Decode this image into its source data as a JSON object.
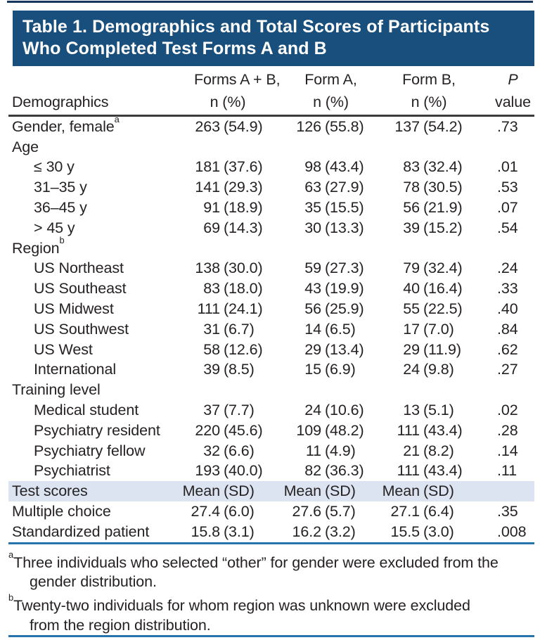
{
  "colors": {
    "top_bar": "#16375c",
    "title_background": "#194f7c",
    "title_text": "#ffffff",
    "highlight_row_background": "#dce4f2",
    "rule_blue": "#2773ab",
    "rule_dark": "#3b3b3b",
    "body_text": "#262223"
  },
  "title": {
    "line1": "Table 1. Demographics and Total Scores of Participants",
    "line2": "Who Completed Test Forms A and B"
  },
  "header": {
    "label": "Demographics",
    "groups": [
      {
        "line1": "Forms A + B,",
        "line2": "n (%)"
      },
      {
        "line1": "Form A,",
        "line2": "n (%)"
      },
      {
        "line1": "Form B,",
        "line2": "n (%)"
      }
    ],
    "p": {
      "line1": "P",
      "line2": "value"
    }
  },
  "rows": [
    {
      "label": "Gender, female",
      "sup": "a",
      "indent": 0,
      "values": [
        "263 (54.9)",
        "126 (55.8)",
        "137 (54.2)"
      ],
      "p": ".73"
    },
    {
      "label": "Age",
      "indent": 0,
      "values": null,
      "p": ""
    },
    {
      "label": "≤ 30 y",
      "indent": 1,
      "values": [
        "181 (37.6)",
        "98 (43.4)",
        "83 (32.4)"
      ],
      "p": ".01"
    },
    {
      "label": "31–35 y",
      "indent": 1,
      "values": [
        "141 (29.3)",
        "63 (27.9)",
        "78 (30.5)"
      ],
      "p": ".53"
    },
    {
      "label": "36–45 y",
      "indent": 1,
      "values": [
        "91 (18.9)",
        "35 (15.5)",
        "56 (21.9)"
      ],
      "p": ".07"
    },
    {
      "label": "> 45 y",
      "indent": 1,
      "values": [
        "69 (14.3)",
        "30 (13.3)",
        "39 (15.2)"
      ],
      "p": ".54"
    },
    {
      "label": "Region",
      "sup": "b",
      "indent": 0,
      "values": null,
      "p": ""
    },
    {
      "label": "US Northeast",
      "indent": 1,
      "values": [
        "138 (30.0)",
        "59 (27.3)",
        "79 (32.4)"
      ],
      "p": ".24"
    },
    {
      "label": "US Southeast",
      "indent": 1,
      "values": [
        "83 (18.0)",
        "43 (19.9)",
        "40 (16.4)"
      ],
      "p": ".33"
    },
    {
      "label": "US Midwest",
      "indent": 1,
      "values": [
        "111 (24.1)",
        "56 (25.9)",
        "55 (22.5)"
      ],
      "p": ".40"
    },
    {
      "label": "US Southwest",
      "indent": 1,
      "values": [
        "31 (6.7)",
        "14 (6.5)",
        "17 (7.0)"
      ],
      "p": ".84"
    },
    {
      "label": "US West",
      "indent": 1,
      "values": [
        "58 (12.6)",
        "29 (13.4)",
        "29 (11.9)"
      ],
      "p": ".62"
    },
    {
      "label": "International",
      "indent": 1,
      "values": [
        "39 (8.5)",
        "15 (6.9)",
        "24 (9.8)"
      ],
      "p": ".27"
    },
    {
      "label": "Training level",
      "indent": 0,
      "values": null,
      "p": ""
    },
    {
      "label": "Medical student",
      "indent": 1,
      "values": [
        "37 (7.7)",
        "24 (10.6)",
        "13 (5.1)"
      ],
      "p": ".02"
    },
    {
      "label": "Psychiatry resident",
      "indent": 1,
      "values": [
        "220 (45.6)",
        "109 (48.2)",
        "111 (43.4)"
      ],
      "p": ".28"
    },
    {
      "label": "Psychiatry fellow",
      "indent": 1,
      "values": [
        "32 (6.6)",
        "11 (4.9)",
        "21 (8.2)"
      ],
      "p": ".14"
    },
    {
      "label": "Psychiatrist",
      "indent": 1,
      "values": [
        "193 (40.0)",
        "82 (36.3)",
        "111 (43.4)"
      ],
      "p": ".11"
    },
    {
      "label": "Test scores",
      "indent": 0,
      "highlight": true,
      "values": [
        "Mean (SD)",
        "Mean (SD)",
        "Mean (SD)"
      ],
      "p": ""
    },
    {
      "label": "Multiple choice",
      "indent": 0,
      "values": [
        "27.4 (6.0)",
        "27.6 (5.7)",
        "27.1 (6.4)"
      ],
      "p": ".35"
    },
    {
      "label": "Standardized patient",
      "indent": 0,
      "values": [
        "15.8 (3.1)",
        "16.2 (3.2)",
        "15.5 (3.0)"
      ],
      "p": ".008"
    }
  ],
  "footnotes": [
    {
      "sup": "a",
      "lines": [
        "Three individuals who selected “other” for gender were excluded from the",
        "gender distribution."
      ]
    },
    {
      "sup": "b",
      "lines": [
        "Twenty-two individuals for whom region was unknown were excluded",
        "from the region distribution."
      ]
    }
  ]
}
